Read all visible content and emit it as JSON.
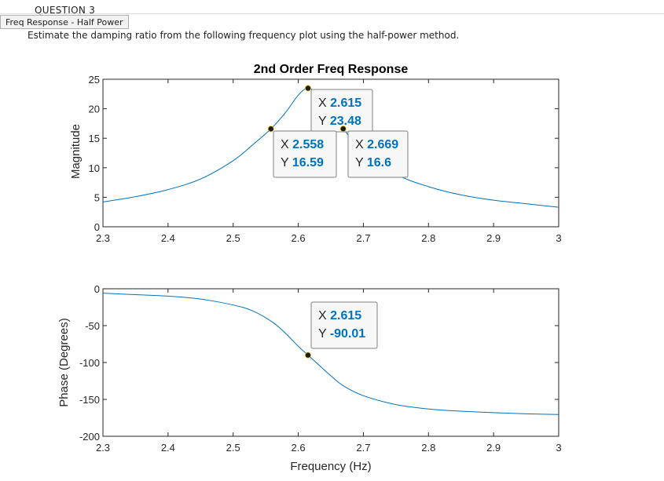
{
  "question": {
    "number_label": "QUESTION 3",
    "tag": "Freq Response - Half Power",
    "text": "Estimate the damping ratio from the following frequency plot using the half-power method."
  },
  "chart_data": [
    {
      "type": "line",
      "title": "2nd Order Freq Response",
      "xlabel": "",
      "ylabel": "Magnitude",
      "xlim": [
        2.3,
        3.0
      ],
      "ylim": [
        0,
        25
      ],
      "xticks": [
        "2.3",
        "2.4",
        "2.5",
        "2.6",
        "2.7",
        "2.8",
        "2.9",
        "3"
      ],
      "yticks": [
        "0",
        "5",
        "10",
        "15",
        "20",
        "25"
      ],
      "grid": false,
      "line_color": "#0072BD",
      "series": [
        {
          "x": [
            2.3,
            2.35,
            2.4,
            2.45,
            2.5,
            2.53,
            2.558,
            2.58,
            2.6,
            2.615,
            2.63,
            2.65,
            2.669,
            2.7,
            2.75,
            2.8,
            2.85,
            2.9,
            2.95,
            3.0
          ],
          "y": [
            4.2,
            5.1,
            6.3,
            8.1,
            11.2,
            13.9,
            16.59,
            19.3,
            22.3,
            23.48,
            22.3,
            19.3,
            16.6,
            12.7,
            8.9,
            6.8,
            5.4,
            4.5,
            3.9,
            3.3
          ]
        }
      ],
      "datatips": [
        {
          "x_label": "X",
          "x_value": "2.615",
          "y_label": "Y",
          "y_value": "23.48",
          "x": 2.615,
          "y": 23.48
        },
        {
          "x_label": "X",
          "x_value": "2.558",
          "y_label": "Y",
          "y_value": "16.59",
          "x": 2.558,
          "y": 16.59
        },
        {
          "x_label": "X",
          "x_value": "2.669",
          "y_label": "Y",
          "y_value": "16.6",
          "x": 2.669,
          "y": 16.6
        }
      ]
    },
    {
      "type": "line",
      "title": "",
      "xlabel": "Frequency (Hz)",
      "ylabel": "Phase (Degrees)",
      "xlim": [
        2.3,
        3.0
      ],
      "ylim": [
        -200,
        0
      ],
      "xticks": [
        "2.3",
        "2.4",
        "2.5",
        "2.6",
        "2.7",
        "2.8",
        "2.9",
        "3"
      ],
      "yticks": [
        "-200",
        "-150",
        "-100",
        "-50",
        "0"
      ],
      "grid": false,
      "line_color": "#0072BD",
      "series": [
        {
          "x": [
            2.3,
            2.35,
            2.4,
            2.45,
            2.5,
            2.53,
            2.56,
            2.58,
            2.6,
            2.615,
            2.63,
            2.65,
            2.67,
            2.7,
            2.75,
            2.8,
            2.85,
            2.9,
            2.95,
            3.0
          ],
          "y": [
            -6,
            -8,
            -10,
            -14,
            -22,
            -30,
            -45,
            -60,
            -78,
            -90.01,
            -102,
            -118,
            -132,
            -145,
            -157,
            -163,
            -166,
            -168,
            -169.5,
            -170.5
          ]
        }
      ],
      "datatips": [
        {
          "x_label": "X",
          "x_value": "2.615",
          "y_label": "Y",
          "y_value": "-90.01",
          "x": 2.615,
          "y": -90.01
        }
      ]
    }
  ],
  "colors": {
    "line": "#0072BD",
    "datatip_value": "#0072BD",
    "datatip_border": "#7f7f7f",
    "datatip_bg": "#f7f7f7",
    "marker": "#1a1a1a",
    "marker_edge": "#e8c200"
  }
}
